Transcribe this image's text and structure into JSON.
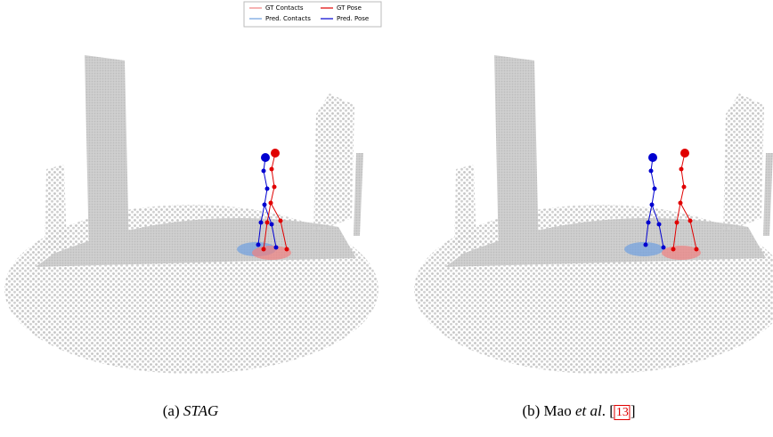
{
  "legend": {
    "items": [
      {
        "label": "GT Contacts",
        "color": "#f08080"
      },
      {
        "label": "Pred. Contacts",
        "color": "#6fa0e0"
      },
      {
        "label": "GT Pose",
        "color": "#e00000"
      },
      {
        "label": "Pred. Pose",
        "color": "#0000d0"
      }
    ]
  },
  "captions": [
    {
      "prefix": "(a) ",
      "italic": "STAG"
    },
    {
      "prefix": "(b) Mao ",
      "italic": "et al",
      "middle": ". [",
      "cite": "13",
      "suffix": "]"
    }
  ]
}
